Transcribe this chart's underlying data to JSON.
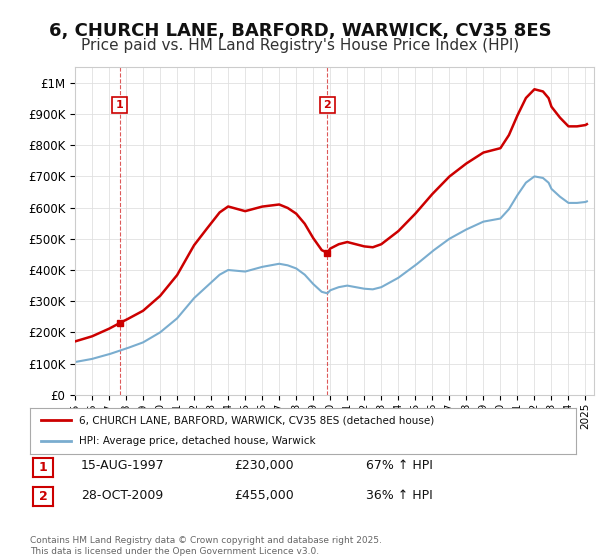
{
  "title": "6, CHURCH LANE, BARFORD, WARWICK, CV35 8ES",
  "subtitle": "Price paid vs. HM Land Registry's House Price Index (HPI)",
  "title_fontsize": 13,
  "subtitle_fontsize": 11,
  "background_color": "#ffffff",
  "plot_bg_color": "#ffffff",
  "grid_color": "#e0e0e0",
  "ylabel_ticks": [
    "£0",
    "£100K",
    "£200K",
    "£300K",
    "£400K",
    "£500K",
    "£600K",
    "£700K",
    "£800K",
    "£900K",
    "£1M"
  ],
  "ytick_values": [
    0,
    100000,
    200000,
    300000,
    400000,
    500000,
    600000,
    700000,
    800000,
    900000,
    1000000
  ],
  "ylim": [
    0,
    1050000
  ],
  "xlim_start": 1995.0,
  "xlim_end": 2025.5,
  "xtick_years": [
    1995,
    1996,
    1997,
    1998,
    1999,
    2000,
    2001,
    2002,
    2003,
    2004,
    2005,
    2006,
    2007,
    2008,
    2009,
    2010,
    2011,
    2012,
    2013,
    2014,
    2015,
    2016,
    2017,
    2018,
    2019,
    2020,
    2021,
    2022,
    2023,
    2024,
    2025
  ],
  "legend_entries": [
    "6, CHURCH LANE, BARFORD, WARWICK, CV35 8ES (detached house)",
    "HPI: Average price, detached house, Warwick"
  ],
  "legend_colors": [
    "#cc0000",
    "#7aadcf"
  ],
  "annotation1_vline_x": 1997.62,
  "annotation2_vline_x": 2009.83,
  "table_data": [
    [
      "1",
      "15-AUG-1997",
      "£230,000",
      "67% ↑ HPI"
    ],
    [
      "2",
      "28-OCT-2009",
      "£455,000",
      "36% ↑ HPI"
    ]
  ],
  "footer": "Contains HM Land Registry data © Crown copyright and database right 2025.\nThis data is licensed under the Open Government Licence v3.0.",
  "red_line_color": "#cc0000",
  "blue_line_color": "#7aadcf",
  "sale1_x": 1997.62,
  "sale1_y": 230000,
  "sale2_x": 2009.83,
  "sale2_y": 455000
}
